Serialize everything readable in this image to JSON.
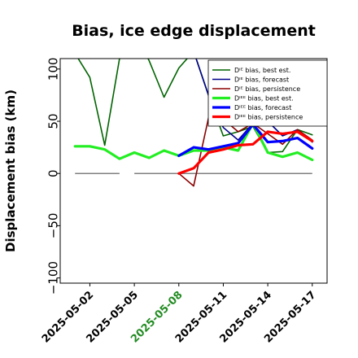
{
  "chart_data": {
    "type": "line",
    "title": "Bias, ice edge displacement",
    "xlabel": "",
    "ylabel": "Displacement bias (km)",
    "ylim": [
      -105,
      110
    ],
    "xlim": [
      "2025-04-30",
      "2025-05-18"
    ],
    "yticks": [
      "100",
      "50",
      "0",
      "−50",
      "−100"
    ],
    "xticks": [
      {
        "label": "2025-05-02",
        "color": "#000000"
      },
      {
        "label": "2025-05-05",
        "color": "#000000"
      },
      {
        "label": "2025-05-08",
        "color": "#228B22"
      },
      {
        "label": "2025-05-11",
        "color": "#000000"
      },
      {
        "label": "2025-05-14",
        "color": "#000000"
      },
      {
        "label": "2025-05-17",
        "color": "#000000"
      }
    ],
    "legend_position": "upper right",
    "grid": false,
    "zero_reference_segments": [
      [
        1,
        4
      ],
      [
        5,
        17
      ]
    ],
    "x": [
      "2025-05-01",
      "2025-05-02",
      "2025-05-03",
      "2025-05-04",
      "2025-05-05",
      "2025-05-06",
      "2025-05-07",
      "2025-05-08",
      "2025-05-09",
      "2025-05-10",
      "2025-05-11",
      "2025-05-12",
      "2025-05-13",
      "2025-05-14",
      "2025-05-15",
      "2025-05-16",
      "2025-05-17"
    ],
    "series": [
      {
        "name": "Dᴵᴱ bias, best est.",
        "color": "#006400",
        "width": 1.6,
        "values": [
          115,
          92,
          27,
          110,
          135,
          108,
          73,
          101,
          117,
          75,
          36,
          40,
          45,
          20,
          21,
          42,
          37
        ]
      },
      {
        "name": "Dᴵᴱ bias, forecast",
        "color": "#00008B",
        "width": 1.6,
        "values": [
          null,
          null,
          null,
          null,
          null,
          null,
          null,
          null,
          117,
          75,
          44,
          32,
          48,
          50,
          36,
          42,
          30
        ]
      },
      {
        "name": "Dᴵᴱ bias, persistence",
        "color": "#8B0000",
        "width": 1.6,
        "values": [
          null,
          null,
          null,
          null,
          null,
          null,
          null,
          0,
          -12,
          53,
          52,
          40,
          48,
          38,
          28,
          42,
          32
        ]
      },
      {
        "name": "Dᴵᴱᴱ bias, best est.",
        "color": "#22EE22",
        "width": 3.2,
        "values": [
          26,
          26,
          23,
          14,
          20,
          15,
          22,
          17,
          22,
          22,
          25,
          22,
          48,
          20,
          16,
          20,
          13
        ]
      },
      {
        "name": "Dᴵᴱᴱ bias, forecast",
        "color": "#0000FF",
        "width": 3.2,
        "values": [
          null,
          null,
          null,
          null,
          null,
          null,
          null,
          17,
          25,
          23,
          26,
          29,
          47,
          30,
          31,
          34,
          24
        ]
      },
      {
        "name": "Dᴵᴱᴱ bias, persistence",
        "color": "#FF0000",
        "width": 3.2,
        "values": [
          null,
          null,
          null,
          null,
          null,
          null,
          null,
          0,
          5,
          20,
          23,
          27,
          28,
          40,
          38,
          40,
          31
        ]
      }
    ]
  }
}
